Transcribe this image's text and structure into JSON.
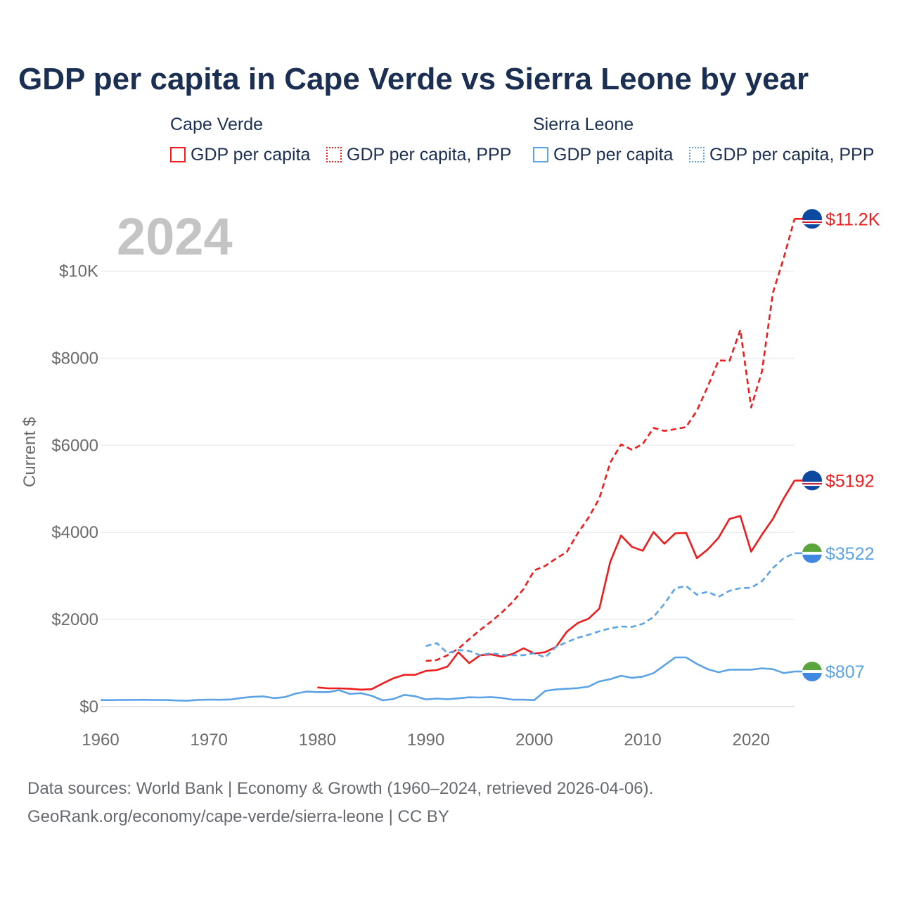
{
  "title": "GDP per capita in Cape Verde vs Sierra Leone by year",
  "legend": {
    "groups": [
      {
        "name": "Cape Verde",
        "items": [
          "GDP per capita",
          "GDP per capita, PPP"
        ]
      },
      {
        "name": "Sierra Leone",
        "items": [
          "GDP per capita",
          "GDP per capita, PPP"
        ]
      }
    ]
  },
  "colors": {
    "cape_verde": "#ee1c1c",
    "sierra_leone": "#5ca3e6",
    "text": "#1b2f52",
    "axis_text": "#6a6a6a",
    "grid": "#e6e6e6",
    "year_watermark": "#c4c4c4"
  },
  "chart_data": {
    "type": "line",
    "year_label": "2024",
    "ylabel": "Current $",
    "xlim": [
      1960,
      2024
    ],
    "ylim": [
      0,
      11200
    ],
    "x_ticks": [
      "1960",
      "1970",
      "1980",
      "1990",
      "2000",
      "2010",
      "2020"
    ],
    "y_ticks": [
      {
        "value": 0,
        "label": "$0"
      },
      {
        "value": 2000,
        "label": "$2000"
      },
      {
        "value": 4000,
        "label": "$4000"
      },
      {
        "value": 6000,
        "label": "$6000"
      },
      {
        "value": 8000,
        "label": "$8000"
      },
      {
        "value": 10000,
        "label": "$10K"
      }
    ],
    "series": [
      {
        "name": "Cape Verde GDP per capita, PPP",
        "country": "Cape Verde",
        "color": "#ee1c1c",
        "style": "dashed",
        "end_label": "$11.2K",
        "x": [
          1990,
          1991,
          1992,
          1993,
          1994,
          1995,
          1996,
          1997,
          1998,
          1999,
          2000,
          2001,
          2002,
          2003,
          2004,
          2005,
          2006,
          2007,
          2008,
          2009,
          2010,
          2011,
          2012,
          2013,
          2014,
          2015,
          2016,
          2017,
          2018,
          2019,
          2020,
          2021,
          2022,
          2023,
          2024
        ],
        "y": [
          1050,
          1070,
          1180,
          1330,
          1550,
          1760,
          1950,
          2160,
          2400,
          2700,
          3130,
          3230,
          3400,
          3550,
          3980,
          4340,
          4780,
          5600,
          6020,
          5900,
          6030,
          6400,
          6330,
          6370,
          6420,
          6800,
          7350,
          7950,
          7940,
          8650,
          6870,
          7700,
          9500,
          10300,
          11200
        ]
      },
      {
        "name": "Cape Verde GDP per capita",
        "country": "Cape Verde",
        "color": "#ee1c1c",
        "style": "solid",
        "end_label": "$5192",
        "x": [
          1980,
          1981,
          1982,
          1983,
          1984,
          1985,
          1986,
          1987,
          1988,
          1989,
          1990,
          1991,
          1992,
          1993,
          1994,
          1995,
          1996,
          1997,
          1998,
          1999,
          2000,
          2001,
          2002,
          2003,
          2004,
          2005,
          2006,
          2007,
          2008,
          2009,
          2010,
          2011,
          2012,
          2013,
          2014,
          2015,
          2016,
          2017,
          2018,
          2019,
          2020,
          2021,
          2022,
          2023,
          2024
        ],
        "y": [
          440,
          420,
          420,
          410,
          390,
          400,
          530,
          650,
          730,
          730,
          820,
          840,
          920,
          1250,
          1000,
          1180,
          1200,
          1150,
          1210,
          1340,
          1220,
          1250,
          1370,
          1720,
          1920,
          2020,
          2250,
          3320,
          3930,
          3670,
          3580,
          4010,
          3740,
          3980,
          3990,
          3410,
          3610,
          3880,
          4310,
          4380,
          3560,
          3950,
          4310,
          4780,
          5192
        ]
      },
      {
        "name": "Sierra Leone GDP per capita, PPP",
        "country": "Sierra Leone",
        "color": "#5ca3e6",
        "style": "dashed",
        "end_label": "$3522",
        "x": [
          1990,
          1991,
          1992,
          1993,
          1994,
          1995,
          1996,
          1997,
          1998,
          1999,
          2000,
          2001,
          2002,
          2003,
          2004,
          2005,
          2006,
          2007,
          2008,
          2009,
          2010,
          2011,
          2012,
          2013,
          2014,
          2015,
          2016,
          2017,
          2018,
          2019,
          2020,
          2021,
          2022,
          2023,
          2024
        ],
        "y": [
          1390,
          1460,
          1230,
          1300,
          1280,
          1180,
          1230,
          1190,
          1180,
          1180,
          1230,
          1130,
          1370,
          1480,
          1580,
          1650,
          1730,
          1800,
          1840,
          1830,
          1900,
          2060,
          2360,
          2720,
          2770,
          2570,
          2640,
          2520,
          2660,
          2720,
          2730,
          2880,
          3180,
          3410,
          3522
        ]
      },
      {
        "name": "Sierra Leone GDP per capita",
        "country": "Sierra Leone",
        "color": "#5ca3e6",
        "style": "solid",
        "end_label": "$807",
        "x": [
          1960,
          1961,
          1962,
          1963,
          1964,
          1965,
          1966,
          1967,
          1968,
          1969,
          1970,
          1971,
          1972,
          1973,
          1974,
          1975,
          1976,
          1977,
          1978,
          1979,
          1980,
          1981,
          1982,
          1983,
          1984,
          1985,
          1986,
          1987,
          1988,
          1989,
          1990,
          1991,
          1992,
          1993,
          1994,
          1995,
          1996,
          1997,
          1998,
          1999,
          2000,
          2001,
          2002,
          2003,
          2004,
          2005,
          2006,
          2007,
          2008,
          2009,
          2010,
          2011,
          2012,
          2013,
          2014,
          2015,
          2016,
          2017,
          2018,
          2019,
          2020,
          2021,
          2022,
          2023,
          2024
        ],
        "y": [
          150,
          150,
          155,
          155,
          158,
          152,
          152,
          142,
          135,
          155,
          162,
          158,
          165,
          200,
          225,
          235,
          195,
          220,
          300,
          345,
          335,
          335,
          380,
          290,
          310,
          250,
          145,
          175,
          270,
          240,
          165,
          185,
          170,
          190,
          215,
          210,
          220,
          200,
          160,
          160,
          150,
          360,
          395,
          410,
          425,
          460,
          580,
          630,
          710,
          660,
          690,
          770,
          950,
          1130,
          1130,
          980,
          860,
          790,
          850,
          850,
          850,
          880,
          860,
          770,
          807
        ]
      }
    ]
  },
  "source": {
    "line1": "Data sources: World Bank | Economy & Growth (1960–2024, retrieved 2026-04-06).",
    "line2": "GeoRank.org/economy/cape-verde/sierra-leone | CC BY"
  }
}
